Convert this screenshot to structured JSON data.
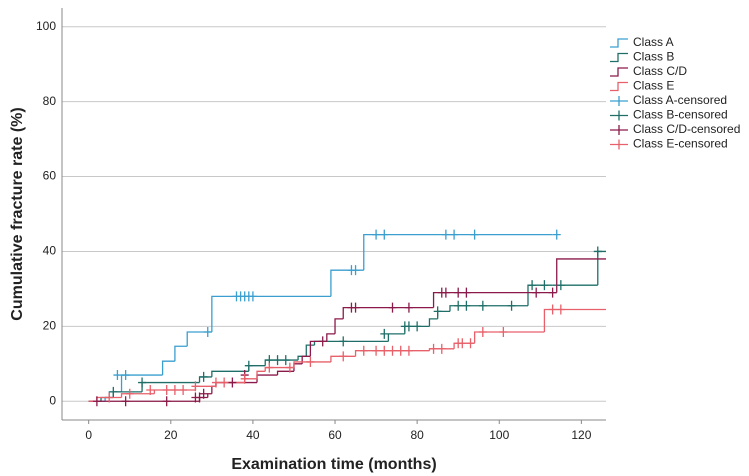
{
  "chart_data": {
    "type": "step",
    "x_label": "Examination time (months)",
    "y_label": "Cumulative fracture rate (%)",
    "xlim": [
      -6.5,
      126
    ],
    "ylim": [
      -5,
      105
    ],
    "xticks": [
      0,
      20,
      40,
      60,
      80,
      100,
      120
    ],
    "yticks": [
      0,
      20,
      40,
      60,
      80,
      100
    ],
    "grid": true,
    "legend": "upper right",
    "series": [
      {
        "name": "Class A",
        "color": "#3a9fcf",
        "kind": "line",
        "x": [
          0,
          4,
          5,
          8,
          18,
          21,
          24,
          30,
          59,
          67,
          113
        ],
        "values": [
          0,
          1,
          2.5,
          7,
          10.7,
          14.7,
          18.5,
          28,
          35,
          44.5,
          44.5
        ]
      },
      {
        "name": "Class B",
        "color": "#1f6f68",
        "kind": "line",
        "x": [
          0,
          3,
          6,
          13,
          27,
          30,
          39,
          43,
          51,
          53,
          55,
          73,
          77,
          83,
          85,
          88,
          107,
          113,
          124,
          126
        ],
        "values": [
          0,
          1,
          2.5,
          5,
          6.5,
          8,
          9.5,
          11,
          12,
          15,
          16,
          18,
          20,
          22,
          24,
          25.5,
          31,
          31,
          40,
          40
        ]
      },
      {
        "name": "Class C/D",
        "color": "#8b1a4a",
        "kind": "line",
        "x": [
          0,
          27,
          29,
          30,
          31,
          41,
          46,
          50,
          52,
          54,
          58,
          60,
          62,
          84,
          114,
          126
        ],
        "values": [
          0,
          1,
          2,
          4,
          5,
          7,
          8,
          10,
          12,
          16,
          18,
          22,
          25,
          29,
          38,
          38
        ]
      },
      {
        "name": "Class E",
        "color": "#e8606a",
        "kind": "line",
        "x": [
          0,
          2,
          8,
          16,
          26,
          31,
          38,
          41,
          43,
          50,
          59,
          65,
          83,
          89,
          94,
          111,
          126
        ],
        "values": [
          0,
          1,
          2,
          3,
          4,
          5,
          6,
          8,
          9,
          10.5,
          12,
          13.5,
          14,
          15.5,
          18.5,
          24.5,
          24.5
        ]
      },
      {
        "name": "Class A-censored",
        "color": "#3a9fcf",
        "kind": "censor",
        "x": [
          7,
          9,
          29,
          36,
          37,
          38,
          39,
          40,
          64,
          65,
          70,
          72,
          87,
          89,
          94,
          114
        ],
        "values": [
          7,
          7,
          18.5,
          28,
          28,
          28,
          28,
          28,
          35,
          35,
          44.5,
          44.5,
          44.5,
          44.5,
          44.5,
          44.5
        ]
      },
      {
        "name": "Class B-censored",
        "color": "#1f6f68",
        "kind": "censor",
        "x": [
          6,
          13,
          28,
          39,
          44,
          46,
          48,
          62,
          72,
          77,
          78,
          80,
          85,
          90,
          92,
          96,
          103,
          108,
          111,
          115,
          124
        ],
        "values": [
          2.5,
          5,
          6.5,
          9.5,
          11,
          11,
          11,
          16,
          18,
          20,
          20,
          20,
          24,
          25.5,
          25.5,
          25.5,
          25.5,
          31,
          31,
          31,
          40
        ]
      },
      {
        "name": "Class C/D-censored",
        "color": "#8b1a4a",
        "kind": "censor",
        "x": [
          2,
          9,
          19,
          26,
          27,
          28,
          35,
          38,
          57,
          64,
          65,
          74,
          78,
          86,
          87,
          90,
          92,
          109,
          113
        ],
        "values": [
          0,
          0,
          0,
          1,
          1,
          2,
          5,
          7,
          16,
          25,
          25,
          25,
          25,
          29,
          29,
          29,
          29,
          29,
          29
        ]
      },
      {
        "name": "Class E-censored",
        "color": "#e8606a",
        "kind": "censor",
        "x": [
          5,
          10,
          15,
          19,
          21,
          23,
          26,
          31,
          33,
          38,
          44,
          49,
          54,
          62,
          67,
          70,
          72,
          74,
          76,
          78,
          84,
          86,
          90,
          91,
          93,
          96,
          101,
          113,
          115
        ],
        "values": [
          1,
          2,
          3,
          3,
          3,
          3,
          4,
          5,
          5,
          6,
          9,
          9,
          10.5,
          12,
          13.5,
          13.5,
          13.5,
          13.5,
          13.5,
          13.5,
          14,
          14,
          15.5,
          15.5,
          15.5,
          18.5,
          18.5,
          24.5,
          24.5
        ]
      }
    ]
  }
}
